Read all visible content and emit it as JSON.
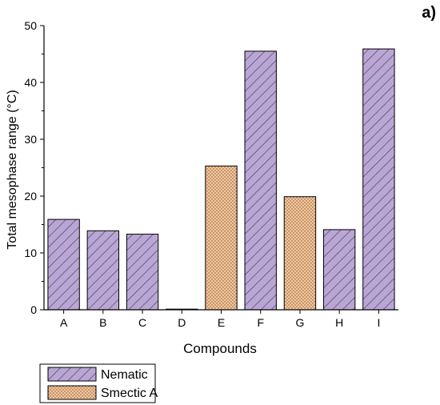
{
  "panel_label": "a)",
  "colors": {
    "nematic_fill": "#b9a6d6",
    "nematic_hatch": "#3b3b3b",
    "smectic_fill": "#f1c49a",
    "smectic_dot": "#8a5a33",
    "axis": "#000000"
  },
  "chart_data": {
    "type": "bar",
    "categories": [
      "A",
      "B",
      "C",
      "D",
      "E",
      "F",
      "G",
      "H",
      "I"
    ],
    "values": [
      15.9,
      13.9,
      13.3,
      0.1,
      25.3,
      45.5,
      19.9,
      14.1,
      45.9
    ],
    "phase": [
      "Nematic",
      "Nematic",
      "Nematic",
      "Nematic",
      "Smectic A",
      "Nematic",
      "Smectic A",
      "Nematic",
      "Nematic"
    ],
    "xlabel": "Compounds",
    "ylabel": "Total mesophase range (°C)",
    "ylim": [
      0,
      50
    ],
    "yticks": [
      "0",
      "10",
      "20",
      "30",
      "40",
      "50"
    ],
    "legend": {
      "position": "bottom-left",
      "entries": [
        "Nematic",
        "Smectic A"
      ]
    },
    "grid": false
  }
}
